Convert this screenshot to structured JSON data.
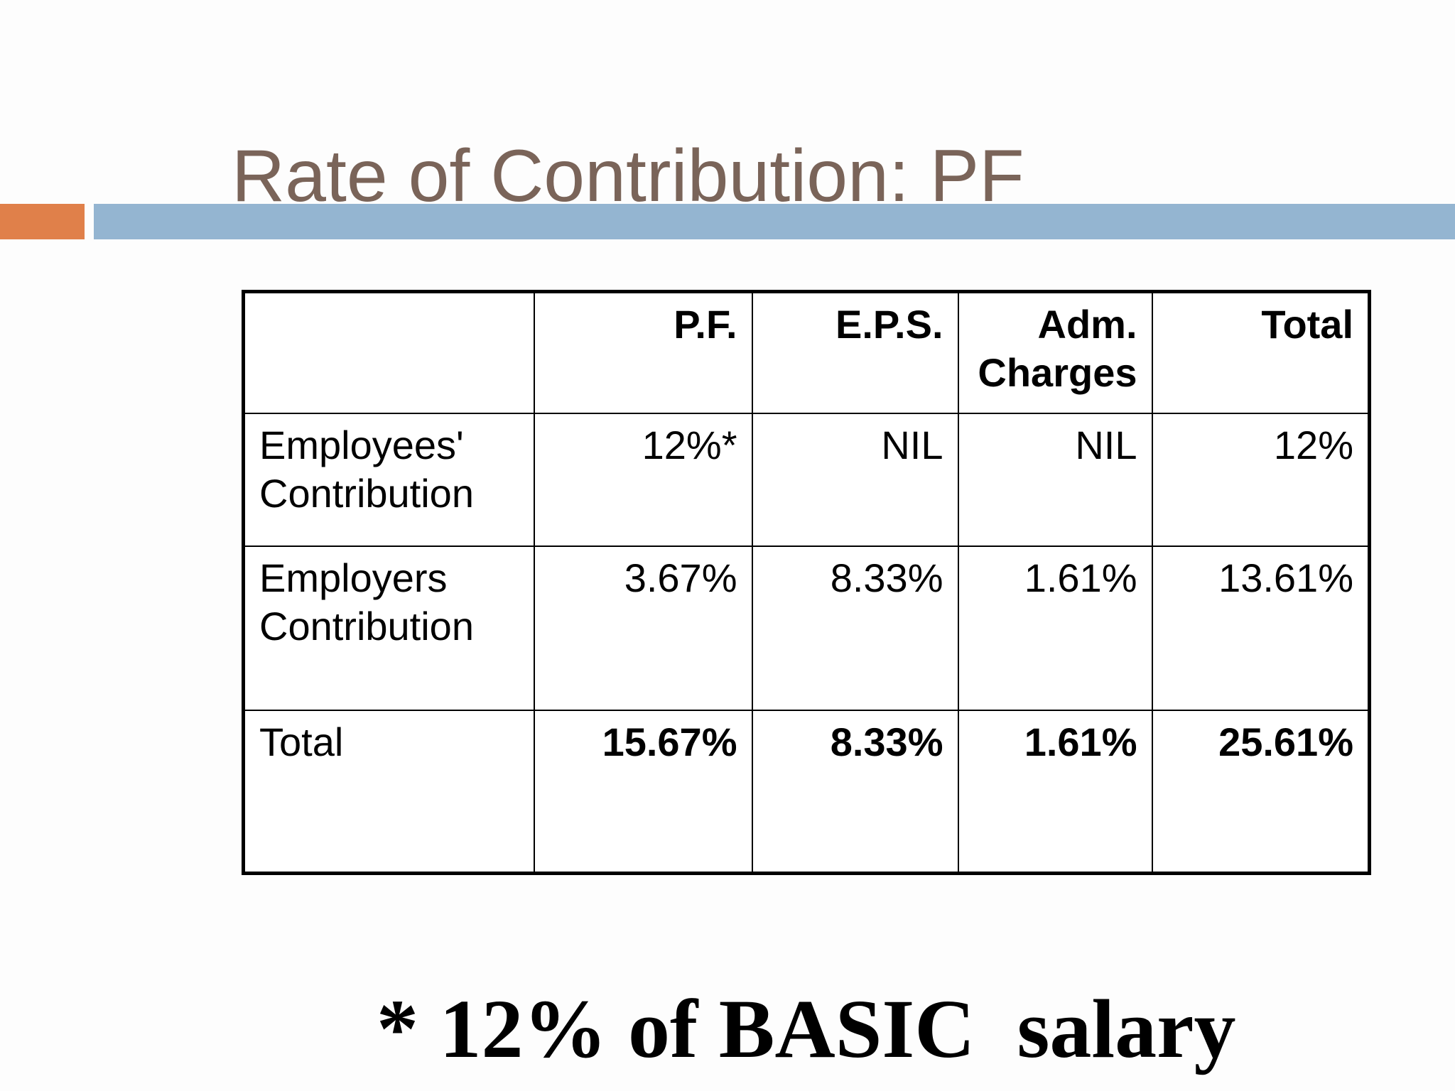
{
  "slide": {
    "title": "Rate of Contribution: PF",
    "footnote": "* 12% of BASIC  salary",
    "colors": {
      "title_text": "#7a6459",
      "accent_bar": "#e0804a",
      "title_rule": "#94b5d1"
    }
  },
  "table": {
    "columns": [
      "",
      "P.F.",
      "E.P.S.",
      "Adm. Charges",
      "Total"
    ],
    "rows": [
      {
        "label": "Employees' Contribution",
        "values": [
          "12%*",
          "NIL",
          "NIL",
          "12%"
        ]
      },
      {
        "label": "Employers Contribution",
        "values": [
          "3.67%",
          "8.33%",
          "1.61%",
          "13.61%"
        ]
      },
      {
        "label": "Total",
        "values": [
          "15.67%",
          "8.33%",
          "1.61%",
          "25.61%"
        ]
      }
    ]
  }
}
